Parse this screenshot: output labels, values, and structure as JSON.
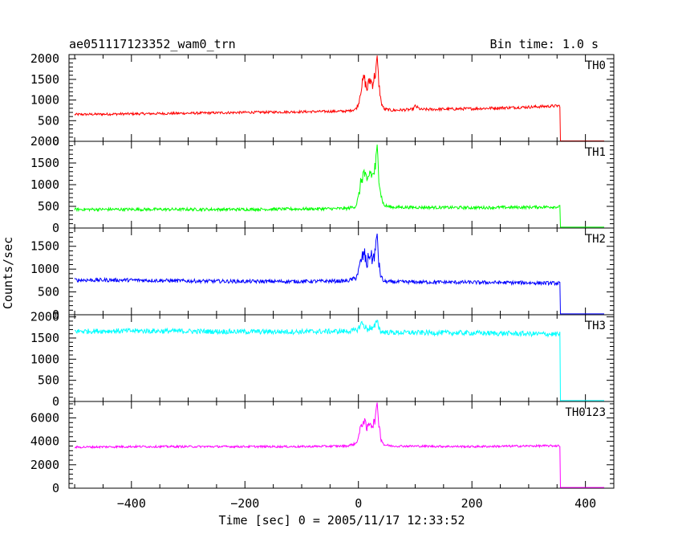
{
  "header": {
    "title": "ae051117123352_wam0_trn",
    "bin_time": "Bin time: 1.0 s"
  },
  "axes": {
    "xlabel": "Time [sec] 0 = 2005/11/17 12:33:52",
    "ylabel": "Counts/sec",
    "xlim": [
      -510,
      450
    ],
    "x_major_ticks": [
      -400,
      -200,
      0,
      200,
      400
    ],
    "x_tick_labels": [
      "−400",
      "−200",
      "0",
      "200",
      "400"
    ]
  },
  "chart_data": {
    "type": "line",
    "title": "ae051117123352_wam0_trn",
    "xlabel": "Time [sec] 0 = 2005/11/17 12:33:52",
    "ylabel": "Counts/sec",
    "xlim": [
      -510,
      450
    ],
    "bin_time_s": 1.0,
    "grid": false,
    "panels": [
      {
        "name": "TH0",
        "color": "#ff0000",
        "ylim": [
          0,
          2100
        ],
        "y_ticks": [
          0,
          500,
          1000,
          1500,
          2000
        ],
        "series": [
          {
            "name": "TH0",
            "x": [
              -500,
              -400,
              -300,
              -200,
              -100,
              -20,
              -5,
              0,
              5,
              10,
              15,
              20,
              25,
              30,
              33,
              36,
              40,
              45,
              60,
              95,
              100,
              110,
              200,
              300,
              355,
              356,
              360,
              430
            ],
            "y": [
              650,
              665,
              680,
              700,
              715,
              730,
              780,
              900,
              1300,
              1550,
              1250,
              1500,
              1400,
              1650,
              2050,
              1400,
              950,
              780,
              750,
              770,
              850,
              770,
              790,
              830,
              860,
              10,
              10,
              10
            ],
            "noise": [
              30,
              30,
              30,
              30,
              30,
              30,
              40,
              60,
              120,
              150,
              140,
              150,
              140,
              160,
              40,
              120,
              60,
              35,
              35,
              35,
              40,
              35,
              35,
              35,
              35,
              0,
              0,
              0
            ]
          }
        ]
      },
      {
        "name": "TH1",
        "color": "#00ff00",
        "ylim": [
          0,
          2000
        ],
        "y_ticks": [
          0,
          500,
          1000,
          1500,
          2000
        ],
        "series": [
          {
            "name": "TH1",
            "x": [
              -500,
              -400,
              -300,
              -200,
              -100,
              -20,
              -5,
              0,
              5,
              10,
              15,
              20,
              25,
              30,
              33,
              36,
              40,
              45,
              60,
              200,
              300,
              355,
              356,
              360,
              430
            ],
            "y": [
              430,
              430,
              430,
              430,
              440,
              450,
              500,
              700,
              1100,
              1300,
              1000,
              1300,
              1200,
              1400,
              1900,
              1200,
              750,
              520,
              480,
              470,
              480,
              490,
              20,
              20,
              20
            ],
            "noise": [
              35,
              35,
              35,
              35,
              35,
              35,
              40,
              80,
              150,
              180,
              160,
              180,
              160,
              200,
              40,
              150,
              80,
              40,
              35,
              35,
              35,
              35,
              0,
              0,
              0
            ]
          }
        ]
      },
      {
        "name": "TH2",
        "color": "#0000ff",
        "ylim": [
          0,
          1900
        ],
        "y_ticks": [
          0,
          500,
          1000,
          1500
        ],
        "series": [
          {
            "name": "TH2",
            "x": [
              -500,
              -400,
              -300,
              -200,
              -100,
              -20,
              -5,
              0,
              5,
              10,
              15,
              20,
              25,
              30,
              33,
              36,
              40,
              45,
              60,
              200,
              300,
              355,
              356,
              360,
              430
            ],
            "y": [
              760,
              760,
              740,
              730,
              730,
              740,
              800,
              950,
              1200,
              1350,
              1100,
              1350,
              1200,
              1400,
              1780,
              1100,
              820,
              730,
              720,
              710,
              700,
              690,
              20,
              20,
              20
            ],
            "noise": [
              45,
              40,
              40,
              40,
              40,
              40,
              50,
              80,
              150,
              170,
              150,
              170,
              150,
              190,
              30,
              130,
              70,
              40,
              40,
              40,
              40,
              40,
              0,
              0,
              0
            ]
          }
        ]
      },
      {
        "name": "TH3",
        "color": "#00ffff",
        "ylim": [
          0,
          2050
        ],
        "y_ticks": [
          0,
          500,
          1000,
          1500,
          2000
        ],
        "series": [
          {
            "name": "TH3",
            "x": [
              -500,
              -400,
              -300,
              -200,
              -100,
              -20,
              -5,
              0,
              5,
              10,
              15,
              20,
              25,
              30,
              33,
              36,
              40,
              45,
              60,
              200,
              300,
              355,
              356,
              360,
              430
            ],
            "y": [
              1660,
              1670,
              1660,
              1650,
              1650,
              1660,
              1680,
              1720,
              1850,
              1800,
              1700,
              1750,
              1700,
              1800,
              1950,
              1750,
              1650,
              1640,
              1630,
              1620,
              1600,
              1590,
              20,
              20,
              20
            ],
            "noise": [
              60,
              60,
              60,
              60,
              60,
              60,
              60,
              70,
              90,
              90,
              80,
              90,
              80,
              90,
              40,
              80,
              60,
              60,
              60,
              60,
              60,
              60,
              0,
              0,
              0
            ]
          }
        ]
      },
      {
        "name": "TH0123",
        "color": "#ff00ff",
        "ylim": [
          0,
          7400
        ],
        "y_ticks": [
          0,
          2000,
          4000,
          6000
        ],
        "series": [
          {
            "name": "TH0123",
            "x": [
              -500,
              -400,
              -300,
              -200,
              -100,
              -20,
              -5,
              0,
              5,
              10,
              15,
              20,
              25,
              30,
              33,
              36,
              40,
              45,
              60,
              200,
              300,
              355,
              356,
              360,
              430
            ],
            "y": [
              3500,
              3550,
              3550,
              3550,
              3550,
              3600,
              3800,
              4300,
              5400,
              5800,
              5000,
              5700,
              5300,
              6000,
              7300,
              5500,
              4200,
              3700,
              3600,
              3550,
              3600,
              3620,
              60,
              60,
              60
            ],
            "noise": [
              90,
              90,
              90,
              90,
              90,
              90,
              110,
              200,
              350,
              400,
              350,
              400,
              350,
              450,
              80,
              350,
              200,
              100,
              90,
              90,
              90,
              90,
              0,
              0,
              0
            ]
          }
        ]
      }
    ]
  }
}
